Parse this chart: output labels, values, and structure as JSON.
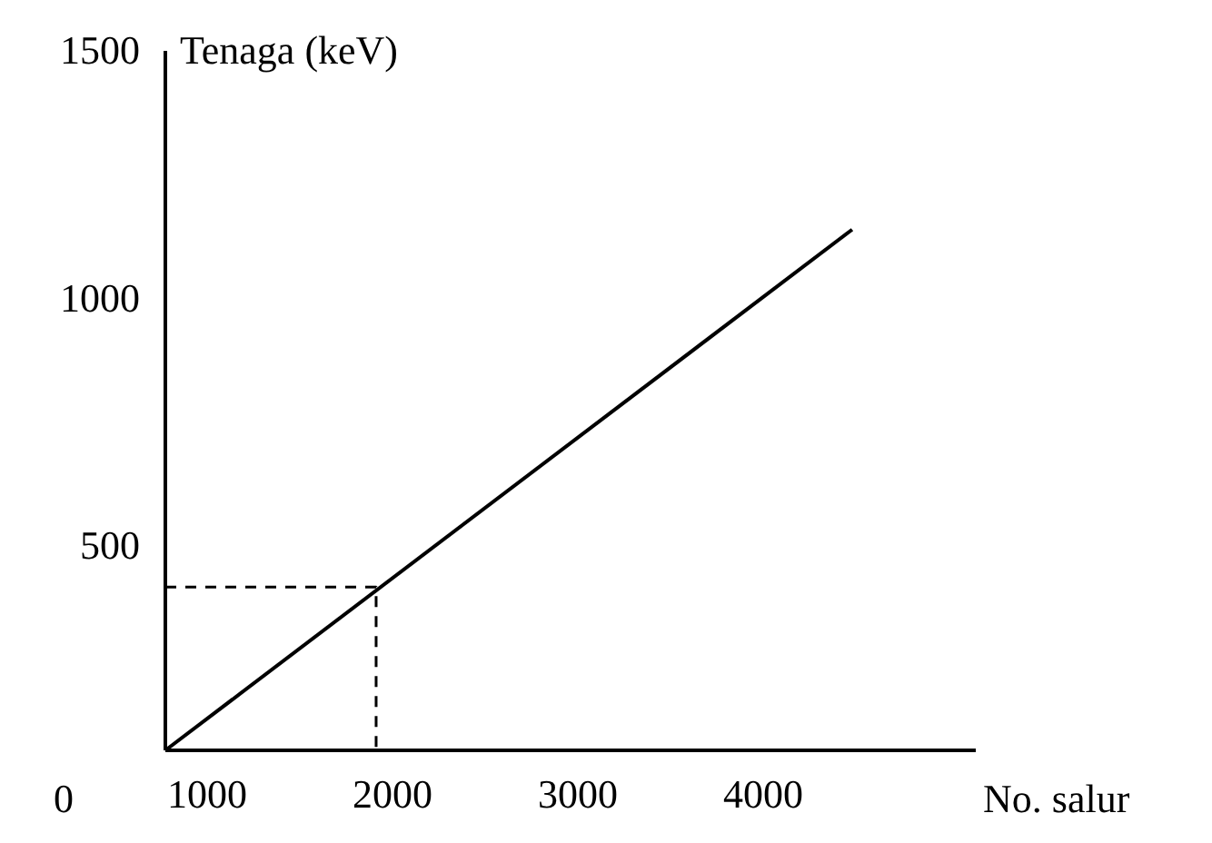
{
  "chart_data": {
    "type": "line",
    "xlabel": "No. salur",
    "ylabel": "Tenaga (keV)",
    "xlim": [
      775,
      5147
    ],
    "xticks": [
      1000,
      2000,
      3000,
      4000
    ],
    "ylim": [
      87,
      1500
    ],
    "yticks": [
      500,
      1000,
      1500
    ],
    "series": [
      {
        "color": "#000000",
        "x": [
          775,
          4480
        ],
        "values": [
          87,
          1139
        ],
        "line_style": "solid"
      },
      {
        "color": "#000000",
        "x": [
          775,
          1912,
          1912
        ],
        "values": [
          417,
          417,
          87
        ],
        "line_style": "dashed"
      }
    ],
    "annotations": [
      "0"
    ],
    "grid": false,
    "marker": "none"
  }
}
